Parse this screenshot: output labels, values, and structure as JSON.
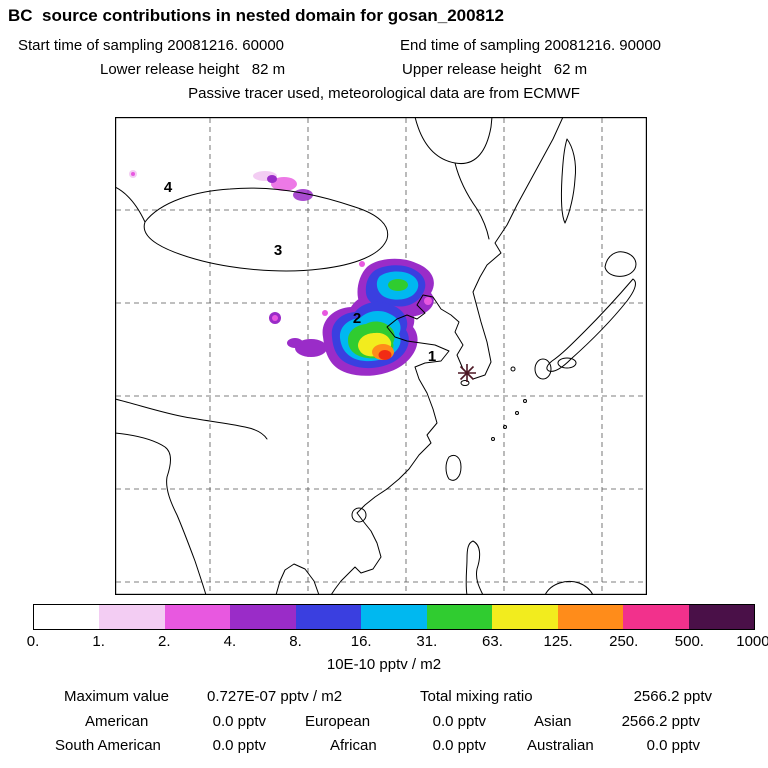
{
  "title": "BC  source contributions in nested domain for gosan_200812",
  "header": {
    "start_time": "Start time of sampling 20081216. 60000",
    "end_time": "End time of sampling 20081216. 90000",
    "lower_release": "Lower release height   82 m",
    "upper_release": "Upper release height   62 m",
    "tracer_note": "Passive tracer used, meteorological data are from ECMWF"
  },
  "map": {
    "region_numbers": [
      "4",
      "3",
      "2",
      "1"
    ],
    "receptor_color": "#4d1724",
    "plume_core_color": "#f22c14"
  },
  "colorbar": {
    "ticks": [
      "0.",
      "1.",
      "2.",
      "4.",
      "8.",
      "16.",
      "31.",
      "63.",
      "125.",
      "250.",
      "500.",
      "1000."
    ],
    "colors": [
      "#ffffff",
      "#f3cdf3",
      "#e858e0",
      "#9a2cc8",
      "#3a3fe0",
      "#00b8f0",
      "#30cc30",
      "#f2ec1e",
      "#ff8c1a",
      "#f2318c",
      "#4a1048"
    ],
    "unit": "10E-10 pptv / m2"
  },
  "summary": {
    "max_label": "Maximum value",
    "max_value": "0.727E-07 pptv / m2",
    "total_label": "Total mixing ratio",
    "total_value": "2566.2 pptv",
    "continents": [
      {
        "label": "American",
        "value": "0.0 pptv"
      },
      {
        "label": "European",
        "value": "0.0 pptv"
      },
      {
        "label": "Asian",
        "value": "2566.2 pptv"
      },
      {
        "label": "South American",
        "value": "0.0 pptv"
      },
      {
        "label": "African",
        "value": "0.0 pptv"
      },
      {
        "label": "Australian",
        "value": "0.0 pptv"
      }
    ]
  },
  "chart_data": {
    "type": "heatmap",
    "title": "BC  source contributions in nested domain for gosan_200812",
    "sampling": {
      "start": "20081216. 60000",
      "end": "20081216. 90000"
    },
    "release_heights_m": {
      "lower": 82,
      "upper": 62
    },
    "tracer_note": "Passive tracer used, meteorological data are from ECMWF",
    "colorbar_unit": "10E-10 pptv / m2",
    "colorbar_levels": [
      0,
      1,
      2,
      4,
      8,
      16,
      31,
      63,
      125,
      250,
      500,
      1000
    ],
    "colorbar_colors": [
      "#ffffff",
      "#f3cdf3",
      "#e858e0",
      "#9a2cc8",
      "#3a3fe0",
      "#00b8f0",
      "#30cc30",
      "#f2ec1e",
      "#ff8c1a",
      "#f2318c",
      "#4a1048"
    ],
    "map_region_numbers": [
      "1",
      "2",
      "3",
      "4"
    ],
    "receptor_marker": "star near Gosan",
    "maximum_value": "0.727E-07 pptv / m2",
    "total_mixing_ratio_pptv": 2566.2,
    "contributions_pptv": [
      {
        "region": "American",
        "value": 0.0
      },
      {
        "region": "European",
        "value": 0.0
      },
      {
        "region": "Asian",
        "value": 2566.2
      },
      {
        "region": "South American",
        "value": 0.0
      },
      {
        "region": "African",
        "value": 0.0
      },
      {
        "region": "Australian",
        "value": 0.0
      }
    ]
  }
}
